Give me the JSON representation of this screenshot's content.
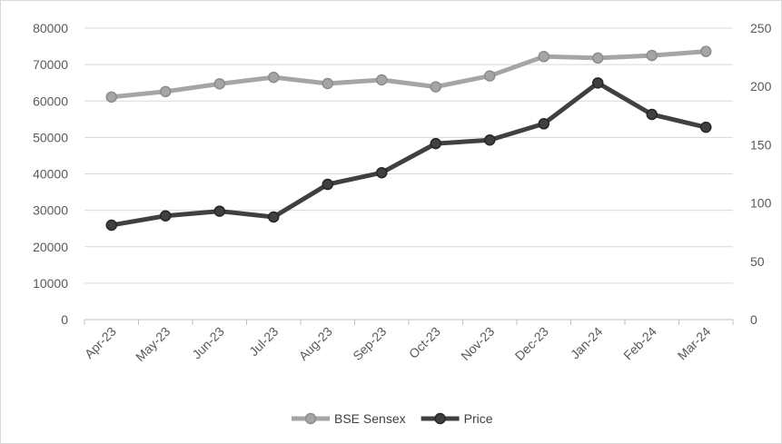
{
  "chart_data": {
    "type": "line",
    "title": "",
    "xlabel": "",
    "ylabel": "",
    "ylabel_right": "",
    "categories": [
      "Apr-23",
      "May-23",
      "Jun-23",
      "Jul-23",
      "Aug-23",
      "Sep-23",
      "Oct-23",
      "Nov-23",
      "Dec-23",
      "Jan-24",
      "Feb-24",
      "Mar-24"
    ],
    "ylim": [
      0,
      80000
    ],
    "y_ticks": [
      "0",
      "10000",
      "20000",
      "30000",
      "40000",
      "50000",
      "60000",
      "70000",
      "80000"
    ],
    "y2lim": [
      0,
      250
    ],
    "y2_ticks": [
      "0",
      "50",
      "100",
      "150",
      "200",
      "250"
    ],
    "grid": "horizontal",
    "legend_position": "bottom",
    "series": [
      {
        "name": "BSE Sensex",
        "axis": "left",
        "color": "#a5a5a5",
        "values": [
          61100,
          62600,
          64700,
          66500,
          64800,
          65800,
          63900,
          66900,
          72200,
          71800,
          72500,
          73600
        ]
      },
      {
        "name": "Price",
        "axis": "right",
        "color": "#404040",
        "values": [
          81,
          89,
          93,
          88,
          116,
          126,
          151,
          154,
          168,
          203,
          176,
          165
        ]
      }
    ]
  }
}
